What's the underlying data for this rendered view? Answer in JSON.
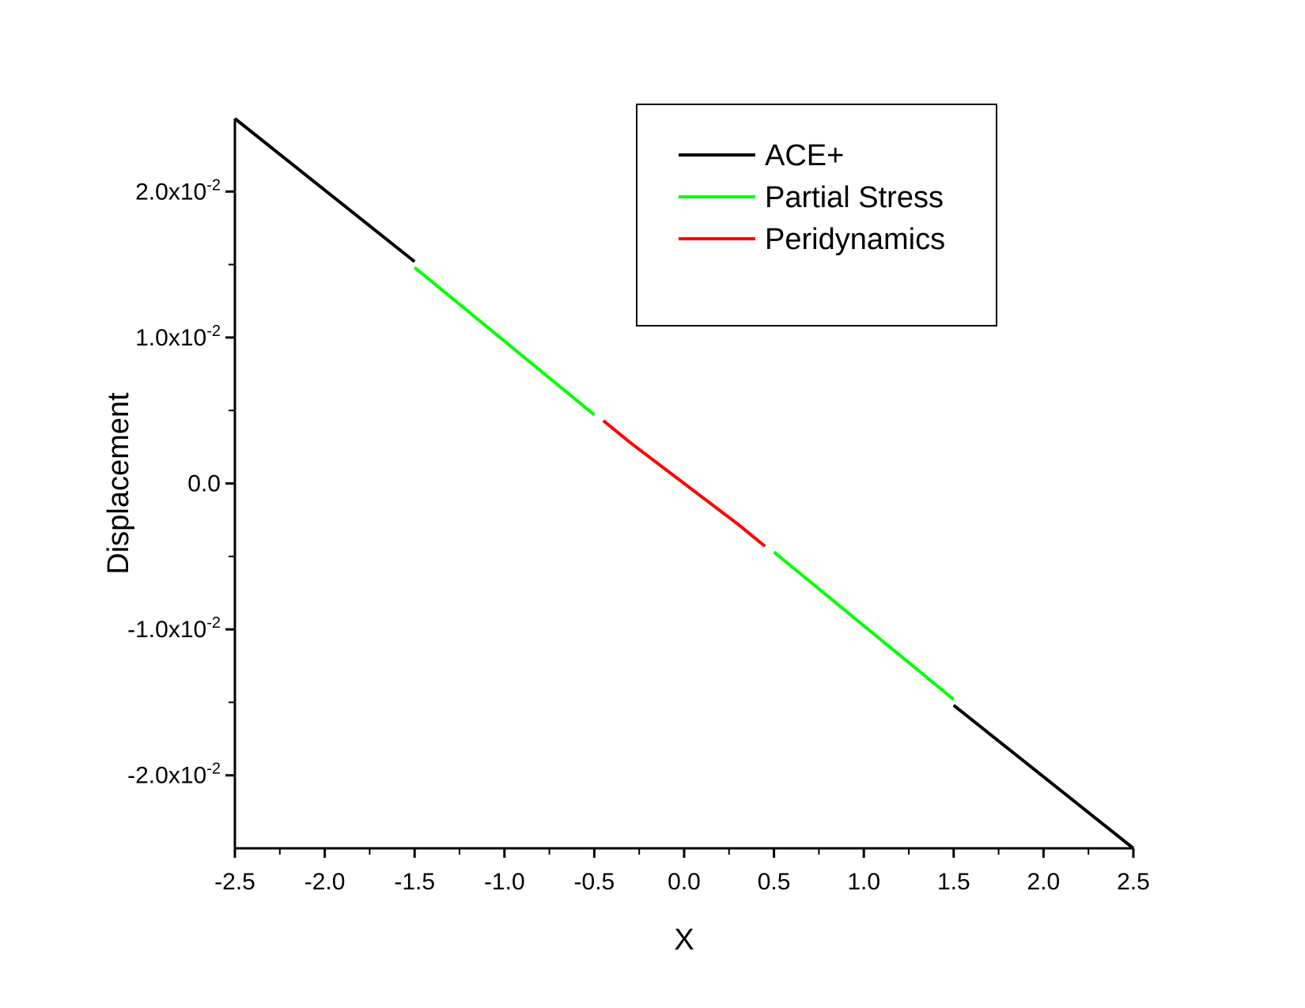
{
  "chart_data": {
    "type": "line",
    "xlabel": "X",
    "ylabel": "Displacement",
    "xlim": [
      -2.5,
      2.5
    ],
    "ylim": [
      -0.025,
      0.025
    ],
    "x_ticks": [
      {
        "value": -2.5,
        "label": "-2.5"
      },
      {
        "value": -2.0,
        "label": "-2.0"
      },
      {
        "value": -1.5,
        "label": "-1.5"
      },
      {
        "value": -1.0,
        "label": "-1.0"
      },
      {
        "value": -0.5,
        "label": "-0.5"
      },
      {
        "value": 0.0,
        "label": "0.0"
      },
      {
        "value": 0.5,
        "label": "0.5"
      },
      {
        "value": 1.0,
        "label": "1.0"
      },
      {
        "value": 1.5,
        "label": "1.5"
      },
      {
        "value": 2.0,
        "label": "2.0"
      },
      {
        "value": 2.5,
        "label": "2.5"
      }
    ],
    "x_minor_ticks": [
      -2.25,
      -1.75,
      -1.25,
      -0.75,
      -0.25,
      0.25,
      0.75,
      1.25,
      1.75,
      2.25
    ],
    "y_ticks": [
      {
        "value": 0.02,
        "mantissa": "2.0x10",
        "exponent": "-2"
      },
      {
        "value": 0.01,
        "mantissa": "1.0x10",
        "exponent": "-2"
      },
      {
        "value": 0.0,
        "mantissa": "0.0",
        "exponent": ""
      },
      {
        "value": -0.01,
        "mantissa": "-1.0x10",
        "exponent": "-2"
      },
      {
        "value": -0.02,
        "mantissa": "-2.0x10",
        "exponent": "-2"
      }
    ],
    "y_minor_ticks": [
      0.015,
      0.005,
      -0.005,
      -0.015
    ],
    "grid": false,
    "legend_position": "top-right",
    "series": [
      {
        "name": "ACE+",
        "color": "#000000",
        "segments": [
          [
            [
              -2.5,
              0.025
            ],
            [
              -1.5,
              0.0152
            ]
          ],
          [
            [
              1.5,
              -0.0152
            ],
            [
              2.5,
              -0.025
            ]
          ]
        ]
      },
      {
        "name": "Partial Stress",
        "color": "#00ff00",
        "segments": [
          [
            [
              -1.5,
              0.0148
            ],
            [
              -0.5,
              0.0047
            ]
          ],
          [
            [
              0.5,
              -0.0047
            ],
            [
              1.5,
              -0.0148
            ]
          ]
        ]
      },
      {
        "name": "Peridynamics",
        "color": "#ff0000",
        "segments": [
          [
            [
              -0.45,
              0.0043
            ],
            [
              -0.3,
              0.0028
            ],
            [
              0.0,
              0.0
            ],
            [
              0.3,
              -0.0028
            ],
            [
              0.45,
              -0.0043
            ]
          ]
        ]
      }
    ]
  }
}
